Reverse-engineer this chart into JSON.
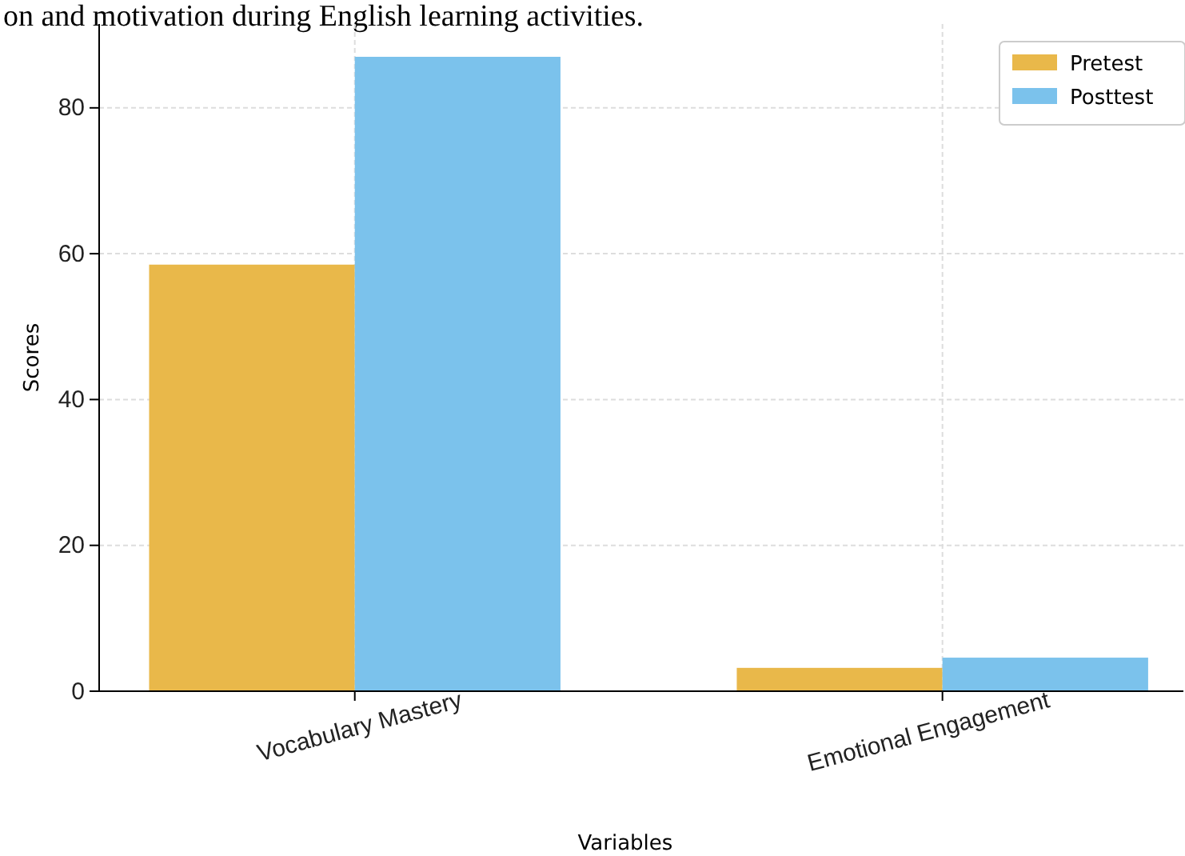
{
  "chart_data": {
    "type": "bar",
    "annotations": [
      "on and motivation during English learning activities."
    ],
    "xlabel": "Variables",
    "ylabel": "Scores",
    "categories": [
      "Vocabulary Mastery",
      "Emotional Engagement"
    ],
    "series": [
      {
        "name": "Pretest",
        "color": "#e9b84a",
        "values": [
          58.5,
          3.2
        ]
      },
      {
        "name": "Posttest",
        "color": "#7bc2ec",
        "values": [
          87.0,
          4.6
        ]
      }
    ],
    "ylim": [
      0,
      91.5
    ],
    "yticks": [
      0,
      20,
      40,
      60,
      80
    ],
    "grid": true,
    "legend": "top right"
  }
}
